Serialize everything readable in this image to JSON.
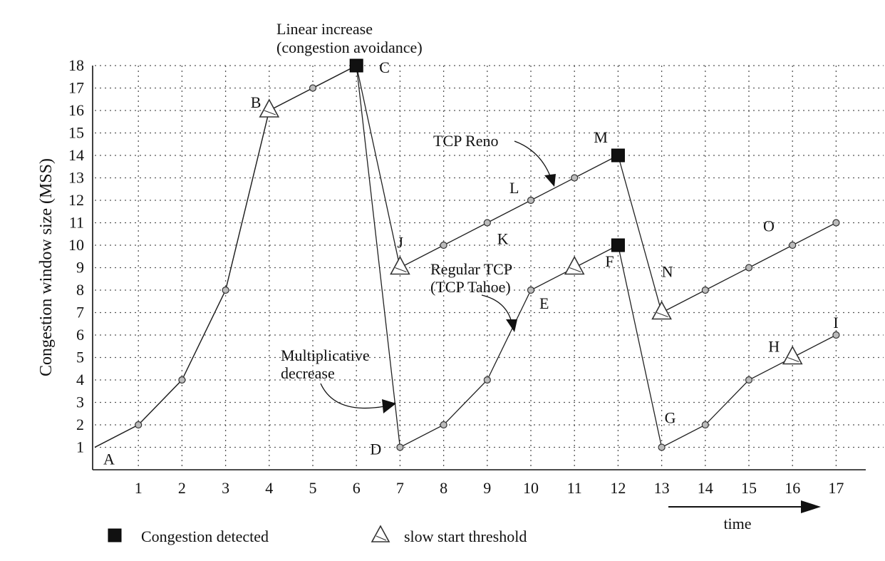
{
  "chart_data": {
    "type": "line",
    "title": "",
    "xlabel": "time",
    "ylabel": "Congestion window size (MSS)",
    "xlim": [
      0,
      17
    ],
    "ylim": [
      0,
      18
    ],
    "x_ticks": [
      "1",
      "2",
      "3",
      "4",
      "5",
      "6",
      "7",
      "8",
      "9",
      "10",
      "11",
      "12",
      "13",
      "14",
      "15",
      "16",
      "17"
    ],
    "y_ticks": [
      "1",
      "2",
      "3",
      "4",
      "5",
      "6",
      "7",
      "8",
      "9",
      "10",
      "11",
      "12",
      "13",
      "14",
      "15",
      "16",
      "17",
      "18"
    ],
    "grid": true,
    "series": [
      {
        "name": "TCP Reno",
        "x": [
          0,
          1,
          2,
          3,
          4,
          5,
          6,
          7,
          8,
          9,
          10,
          11,
          12,
          13,
          14,
          15,
          16,
          17
        ],
        "y": [
          1,
          2,
          4,
          8,
          16,
          17,
          18,
          9,
          10,
          11,
          12,
          13,
          14,
          7,
          8,
          9,
          10,
          11
        ]
      },
      {
        "name": "Regular TCP (TCP Tahoe)",
        "x": [
          0,
          1,
          2,
          3,
          4,
          5,
          6,
          7,
          8,
          9,
          10,
          11,
          12,
          13,
          14,
          15,
          16,
          17
        ],
        "y": [
          1,
          2,
          4,
          8,
          16,
          17,
          18,
          1,
          2,
          4,
          8,
          9,
          10,
          1,
          2,
          4,
          5,
          6
        ]
      }
    ],
    "markers": {
      "congestion": [
        {
          "x": 6,
          "y": 18
        },
        {
          "x": 12,
          "y": 14
        },
        {
          "x": 12,
          "y": 10
        }
      ],
      "threshold": [
        {
          "x": 4,
          "y": 16
        },
        {
          "x": 7,
          "y": 9
        },
        {
          "x": 11,
          "y": 9
        },
        {
          "x": 13,
          "y": 7
        },
        {
          "x": 16,
          "y": 5
        }
      ]
    },
    "point_labels": [
      {
        "text": "A",
        "x": 0,
        "y": 1,
        "dx": 12,
        "dy": 24
      },
      {
        "text": "B",
        "x": 4,
        "y": 16,
        "dx": -26,
        "dy": -4
      },
      {
        "text": "C",
        "x": 6,
        "y": 18,
        "dx": 32,
        "dy": 10
      },
      {
        "text": "D",
        "x": 7,
        "y": 1,
        "dx": -42,
        "dy": 10
      },
      {
        "text": "E",
        "x": 10,
        "y": 8,
        "dx": 12,
        "dy": 26
      },
      {
        "text": "F",
        "x": 12,
        "y": 10,
        "dx": -18,
        "dy": 30
      },
      {
        "text": "G",
        "x": 13,
        "y": 1,
        "dx": 4,
        "dy": -34
      },
      {
        "text": "H",
        "x": 16,
        "y": 5,
        "dx": -34,
        "dy": -8
      },
      {
        "text": "I",
        "x": 17,
        "y": 6,
        "dx": -4,
        "dy": -10
      },
      {
        "text": "J",
        "x": 7,
        "y": 9,
        "dx": -4,
        "dy": -28
      },
      {
        "text": "K",
        "x": 9,
        "y": 11,
        "dx": 14,
        "dy": 30
      },
      {
        "text": "L",
        "x": 10,
        "y": 12,
        "dx": -30,
        "dy": -10
      },
      {
        "text": "M",
        "x": 12,
        "y": 14,
        "dx": -34,
        "dy": -18
      },
      {
        "text": "N",
        "x": 13,
        "y": 7,
        "dx": 0,
        "dy": -50
      },
      {
        "text": "O",
        "x": 15,
        "y": 11,
        "dx": 20,
        "dy": 12
      }
    ],
    "annotations": {
      "linear_increase": [
        "Linear increase",
        "(congestion avoidance)"
      ],
      "tcp_reno": "TCP Reno",
      "regular_tcp": [
        "Regular TCP",
        "(TCP Tahoe)"
      ],
      "multiplicative": [
        "Multiplicative",
        "decrease"
      ]
    },
    "legend": {
      "placement": "bottom-left",
      "congestion": "Congestion detected",
      "threshold": "slow start threshold"
    }
  }
}
